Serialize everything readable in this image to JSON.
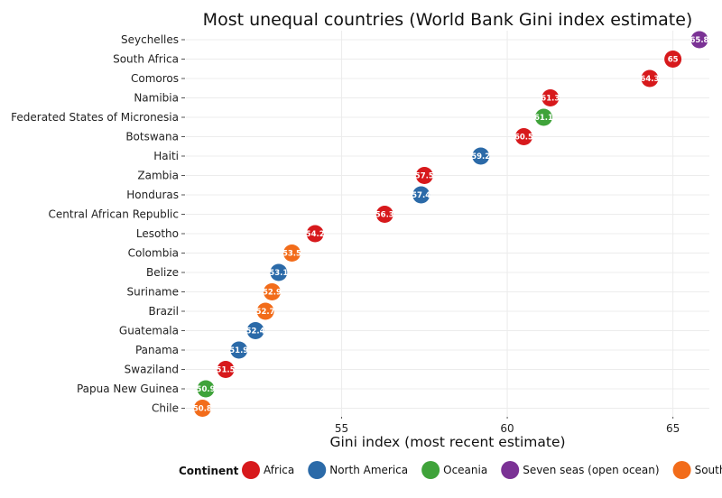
{
  "chart_data": {
    "type": "scatter",
    "title": "Most unequal countries (World Bank Gini index estimate)",
    "xlabel": "Gini index (most recent estimate)",
    "ylabel": "",
    "xlim": [
      50.3,
      66.1
    ],
    "xticks": [
      55,
      60,
      65
    ],
    "grid": true,
    "legend_position": "bottom",
    "legend_title": "Continent",
    "continents": [
      {
        "name": "Africa",
        "color": "#d7191c"
      },
      {
        "name": "North America",
        "color": "#2b6aa8"
      },
      {
        "name": "Oceania",
        "color": "#3fa33a"
      },
      {
        "name": "Seven seas (open ocean)",
        "color": "#7b3295"
      },
      {
        "name": "South America",
        "color": "#f26c1a"
      }
    ],
    "points": [
      {
        "country": "Seychelles",
        "value": 65.8,
        "label": "65.8",
        "continent": "Seven seas (open ocean)"
      },
      {
        "country": "South Africa",
        "value": 65.0,
        "label": "65",
        "continent": "Africa"
      },
      {
        "country": "Comoros",
        "value": 64.3,
        "label": "64.3",
        "continent": "Africa"
      },
      {
        "country": "Namibia",
        "value": 61.3,
        "label": "61.3",
        "continent": "Africa"
      },
      {
        "country": "Federated States of Micronesia",
        "value": 61.1,
        "label": "61.1",
        "continent": "Oceania"
      },
      {
        "country": "Botswana",
        "value": 60.5,
        "label": "60.5",
        "continent": "Africa"
      },
      {
        "country": "Haiti",
        "value": 59.2,
        "label": "59.2",
        "continent": "North America"
      },
      {
        "country": "Zambia",
        "value": 57.5,
        "label": "57.5",
        "continent": "Africa"
      },
      {
        "country": "Honduras",
        "value": 57.4,
        "label": "57.4",
        "continent": "North America"
      },
      {
        "country": "Central African Republic",
        "value": 56.3,
        "label": "56.3",
        "continent": "Africa"
      },
      {
        "country": "Lesotho",
        "value": 54.2,
        "label": "54.2",
        "continent": "Africa"
      },
      {
        "country": "Colombia",
        "value": 53.5,
        "label": "53.5",
        "continent": "South America"
      },
      {
        "country": "Belize",
        "value": 53.1,
        "label": "53.1",
        "continent": "North America"
      },
      {
        "country": "Suriname",
        "value": 52.9,
        "label": "52.9",
        "continent": "South America"
      },
      {
        "country": "Brazil",
        "value": 52.7,
        "label": "52.7",
        "continent": "South America"
      },
      {
        "country": "Guatemala",
        "value": 52.4,
        "label": "52.4",
        "continent": "North America"
      },
      {
        "country": "Panama",
        "value": 51.9,
        "label": "51.9",
        "continent": "North America"
      },
      {
        "country": "Swaziland",
        "value": 51.5,
        "label": "51.5",
        "continent": "Africa"
      },
      {
        "country": "Papua New Guinea",
        "value": 50.9,
        "label": "50.9",
        "continent": "Oceania"
      },
      {
        "country": "Chile",
        "value": 50.8,
        "label": "50.8",
        "continent": "South America"
      }
    ]
  }
}
